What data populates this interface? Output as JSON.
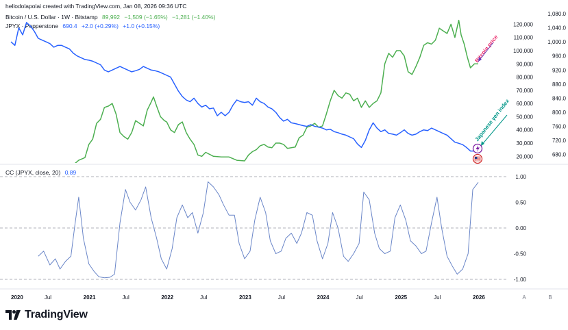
{
  "header": {
    "created_by": "hellodolapolai created with TradingView.com, Jan 08, 2026 09:36 UTC"
  },
  "legend": {
    "btc": {
      "name": "Bitcoin / U.S. Dollar · 1W · Bitstamp",
      "value": "89,992",
      "change": "−1,509 (−1.65%)",
      "change2": "−1,281 (−1.40%)"
    },
    "jpyx": {
      "name": "JPYX · Pepperstone",
      "value": "690.4",
      "change": "+2.0 (+0.29%)",
      "change2": "+1.0 (+0.15%)"
    },
    "cc": {
      "name": "CC (JPYX, close, 20)",
      "value": "0.89"
    }
  },
  "annotations": {
    "bitcoin": "Bitcoin price",
    "yen": "Japanese yen index"
  },
  "footer": {
    "brand": "TradingView"
  },
  "colors": {
    "btc": "#4caf50",
    "jpyx": "#2962ff",
    "cc": "#6a86c8",
    "grid": "#d1d4dc",
    "text": "#131722",
    "annot_btc": "#e91e63",
    "annot_yen": "#009688"
  },
  "chart_data": [
    {
      "type": "line",
      "x_ticks": [
        "2020",
        "Jul",
        "2021",
        "Jul",
        "2022",
        "Jul",
        "2023",
        "Jul",
        "2024",
        "Jul",
        "2025",
        "Jul",
        "2026"
      ],
      "axis_extras": [
        "A",
        "B"
      ],
      "x_range": [
        2020.0,
        2026.0
      ],
      "right_axis_btc": {
        "ticks": [
          "120,000",
          "110,000",
          "100,000",
          "90,000",
          "80,000",
          "70,000",
          "60,000",
          "50,000",
          "40,000",
          "30,000",
          "20,000"
        ],
        "ylim": [
          16000,
          128000
        ]
      },
      "right_axis_jpyx": {
        "ticks": [
          "1,080.0",
          "1,040.0",
          "1,000.0",
          "960.0",
          "920.0",
          "880.0",
          "840.0",
          "800.0",
          "760.0",
          "720.0",
          "680.0"
        ],
        "ylim": [
          660,
          1080
        ]
      },
      "series": [
        {
          "name": "Bitcoin / U.S. Dollar",
          "color": "#4caf50",
          "axis": "btc",
          "x": [
            2020.0,
            2020.1,
            2020.2,
            2020.35,
            2020.5,
            2020.6,
            2020.7,
            2020.8,
            2020.87,
            2020.95,
            2021.0,
            2021.05,
            2021.1,
            2021.15,
            2021.2,
            2021.25,
            2021.3,
            2021.35,
            2021.4,
            2021.45,
            2021.5,
            2021.55,
            2021.6,
            2021.65,
            2021.7,
            2021.75,
            2021.8,
            2021.83,
            2021.87,
            2021.92,
            2021.97,
            2022.0,
            2022.05,
            2022.1,
            2022.15,
            2022.2,
            2022.25,
            2022.3,
            2022.35,
            2022.4,
            2022.45,
            2022.5,
            2022.6,
            2022.7,
            2022.8,
            2022.9,
            2023.0,
            2023.05,
            2023.1,
            2023.15,
            2023.2,
            2023.25,
            2023.3,
            2023.35,
            2023.4,
            2023.45,
            2023.5,
            2023.55,
            2023.6,
            2023.65,
            2023.7,
            2023.75,
            2023.8,
            2023.85,
            2023.9,
            2023.95,
            2024.0,
            2024.05,
            2024.1,
            2024.15,
            2024.2,
            2024.25,
            2024.3,
            2024.35,
            2024.4,
            2024.45,
            2024.5,
            2024.55,
            2024.6,
            2024.65,
            2024.7,
            2024.75,
            2024.8,
            2024.85,
            2024.9,
            2024.95,
            2025.0,
            2025.05,
            2025.1,
            2025.15,
            2025.2,
            2025.25,
            2025.3,
            2025.35,
            2025.4,
            2025.45,
            2025.5,
            2025.55,
            2025.6,
            2025.65,
            2025.7,
            2025.75,
            2025.78,
            2025.82,
            2025.86,
            2025.9,
            2025.95,
            2026.0
          ],
          "y": [
            8000,
            9500,
            6000,
            8500,
            9200,
            11000,
            11500,
            13500,
            17000,
            19000,
            29000,
            33000,
            45000,
            48000,
            57000,
            58000,
            60000,
            52000,
            38000,
            35000,
            33000,
            38000,
            47000,
            45000,
            43000,
            55000,
            61000,
            65000,
            58000,
            50000,
            47000,
            46000,
            40000,
            38000,
            44000,
            46000,
            38000,
            33000,
            29000,
            21000,
            20000,
            23000,
            20000,
            19500,
            19500,
            17000,
            16500,
            21000,
            23500,
            25000,
            28000,
            29000,
            27000,
            26500,
            30000,
            30000,
            29000,
            26000,
            26500,
            27000,
            34000,
            36000,
            42000,
            43000,
            45000,
            42000,
            43000,
            52000,
            62000,
            70000,
            66000,
            64000,
            68000,
            67000,
            62000,
            64000,
            57000,
            62000,
            57000,
            60000,
            62000,
            68000,
            90000,
            98000,
            95000,
            100000,
            100000,
            96000,
            84000,
            82000,
            88000,
            95000,
            104000,
            106000,
            105000,
            108000,
            117000,
            115000,
            113000,
            120000,
            110000,
            123000,
            112000,
            105000,
            95000,
            87000,
            90000,
            90000
          ]
        },
        {
          "name": "JPYX · Pepperstone",
          "color": "#2962ff",
          "axis": "jpyx",
          "x": [
            2020.0,
            2020.05,
            2020.1,
            2020.15,
            2020.2,
            2020.25,
            2020.3,
            2020.35,
            2020.4,
            2020.45,
            2020.5,
            2020.55,
            2020.6,
            2020.65,
            2020.7,
            2020.75,
            2020.8,
            2020.85,
            2020.9,
            2020.95,
            2021.0,
            2021.05,
            2021.1,
            2021.15,
            2021.2,
            2021.25,
            2021.3,
            2021.35,
            2021.4,
            2021.45,
            2021.5,
            2021.55,
            2021.6,
            2021.65,
            2021.7,
            2021.75,
            2021.8,
            2021.85,
            2021.9,
            2021.95,
            2022.0,
            2022.05,
            2022.1,
            2022.15,
            2022.2,
            2022.25,
            2022.3,
            2022.35,
            2022.4,
            2022.45,
            2022.5,
            2022.55,
            2022.6,
            2022.65,
            2022.7,
            2022.75,
            2022.8,
            2022.85,
            2022.9,
            2022.95,
            2023.0,
            2023.05,
            2023.1,
            2023.15,
            2023.2,
            2023.25,
            2023.3,
            2023.35,
            2023.4,
            2023.45,
            2023.5,
            2023.55,
            2023.6,
            2023.65,
            2023.7,
            2023.75,
            2023.8,
            2023.85,
            2023.9,
            2023.95,
            2024.0,
            2024.05,
            2024.1,
            2024.15,
            2024.2,
            2024.25,
            2024.3,
            2024.35,
            2024.4,
            2024.45,
            2024.5,
            2024.55,
            2024.6,
            2024.65,
            2024.7,
            2024.75,
            2024.8,
            2024.85,
            2024.9,
            2024.95,
            2025.0,
            2025.05,
            2025.1,
            2025.15,
            2025.2,
            2025.25,
            2025.3,
            2025.35,
            2025.4,
            2025.45,
            2025.5,
            2025.55,
            2025.6,
            2025.65,
            2025.7,
            2025.75,
            2025.8,
            2025.85,
            2025.9,
            2025.95,
            2026.0
          ],
          "y": [
            1000,
            990,
            1040,
            1020,
            1055,
            1045,
            1030,
            1010,
            1005,
            1000,
            995,
            985,
            990,
            990,
            985,
            980,
            968,
            960,
            955,
            950,
            948,
            945,
            940,
            935,
            920,
            915,
            920,
            925,
            930,
            925,
            920,
            915,
            918,
            922,
            930,
            925,
            920,
            918,
            915,
            910,
            905,
            900,
            880,
            860,
            845,
            835,
            830,
            840,
            825,
            815,
            820,
            810,
            812,
            790,
            800,
            790,
            800,
            820,
            835,
            830,
            828,
            830,
            820,
            840,
            830,
            825,
            815,
            810,
            800,
            785,
            775,
            780,
            770,
            768,
            765,
            762,
            760,
            765,
            760,
            758,
            755,
            750,
            752,
            745,
            742,
            738,
            735,
            730,
            725,
            710,
            700,
            720,
            750,
            770,
            755,
            745,
            750,
            740,
            738,
            735,
            742,
            750,
            740,
            735,
            738,
            745,
            750,
            748,
            755,
            750,
            745,
            740,
            735,
            725,
            715,
            712,
            708,
            700,
            690,
            690,
            690
          ]
        },
        {
          "name": "CC (JPYX, close, 20)",
          "color": "#6a86c8",
          "axis": "cc",
          "x": [
            2020.35,
            2020.42,
            2020.5,
            2020.57,
            2020.63,
            2020.7,
            2020.77,
            2020.82,
            2020.87,
            2020.93,
            2021.0,
            2021.07,
            2021.13,
            2021.2,
            2021.27,
            2021.33,
            2021.4,
            2021.47,
            2021.53,
            2021.6,
            2021.67,
            2021.73,
            2021.8,
            2021.87,
            2021.93,
            2022.0,
            2022.07,
            2022.13,
            2022.2,
            2022.27,
            2022.33,
            2022.4,
            2022.47,
            2022.53,
            2022.6,
            2022.67,
            2022.73,
            2022.8,
            2022.87,
            2022.93,
            2023.0,
            2023.07,
            2023.13,
            2023.2,
            2023.27,
            2023.33,
            2023.4,
            2023.47,
            2023.53,
            2023.6,
            2023.67,
            2023.73,
            2023.8,
            2023.87,
            2023.93,
            2024.0,
            2024.07,
            2024.13,
            2024.2,
            2024.27,
            2024.33,
            2024.4,
            2024.47,
            2024.53,
            2024.6,
            2024.67,
            2024.73,
            2024.8,
            2024.87,
            2024.93,
            2025.0,
            2025.07,
            2025.13,
            2025.2,
            2025.27,
            2025.33,
            2025.4,
            2025.47,
            2025.53,
            2025.6,
            2025.67,
            2025.73,
            2025.8,
            2025.87,
            2025.93,
            2026.0
          ],
          "y": [
            -0.55,
            -0.45,
            -0.72,
            -0.6,
            -0.8,
            -0.65,
            -0.55,
            0.05,
            0.6,
            -0.2,
            -0.7,
            -0.85,
            -0.95,
            -0.97,
            -0.96,
            -0.9,
            0.1,
            0.75,
            0.5,
            0.35,
            0.55,
            0.8,
            0.2,
            -0.2,
            -0.6,
            -0.8,
            -0.4,
            0.2,
            0.45,
            0.2,
            0.3,
            -0.1,
            0.3,
            0.9,
            0.8,
            0.65,
            0.45,
            0.25,
            0.25,
            -0.3,
            -0.6,
            -0.45,
            0.15,
            0.6,
            0.3,
            -0.25,
            -0.5,
            -0.45,
            -0.2,
            -0.1,
            -0.3,
            -0.1,
            0.3,
            0.25,
            -0.25,
            -0.6,
            -0.3,
            0.3,
            0.0,
            -0.55,
            -0.65,
            -0.5,
            -0.3,
            0.7,
            0.55,
            -0.1,
            -0.4,
            -0.5,
            -0.45,
            0.2,
            0.45,
            0.15,
            -0.25,
            -0.35,
            -0.5,
            -0.45,
            0.1,
            0.6,
            0.0,
            -0.55,
            -0.75,
            -0.9,
            -0.8,
            -0.5,
            0.75,
            0.89
          ],
          "ylim": [
            -1.0,
            1.0
          ],
          "ticks": [
            "1.00",
            "0.50",
            "0.00",
            "-0.50",
            "-1.00"
          ]
        }
      ]
    }
  ]
}
